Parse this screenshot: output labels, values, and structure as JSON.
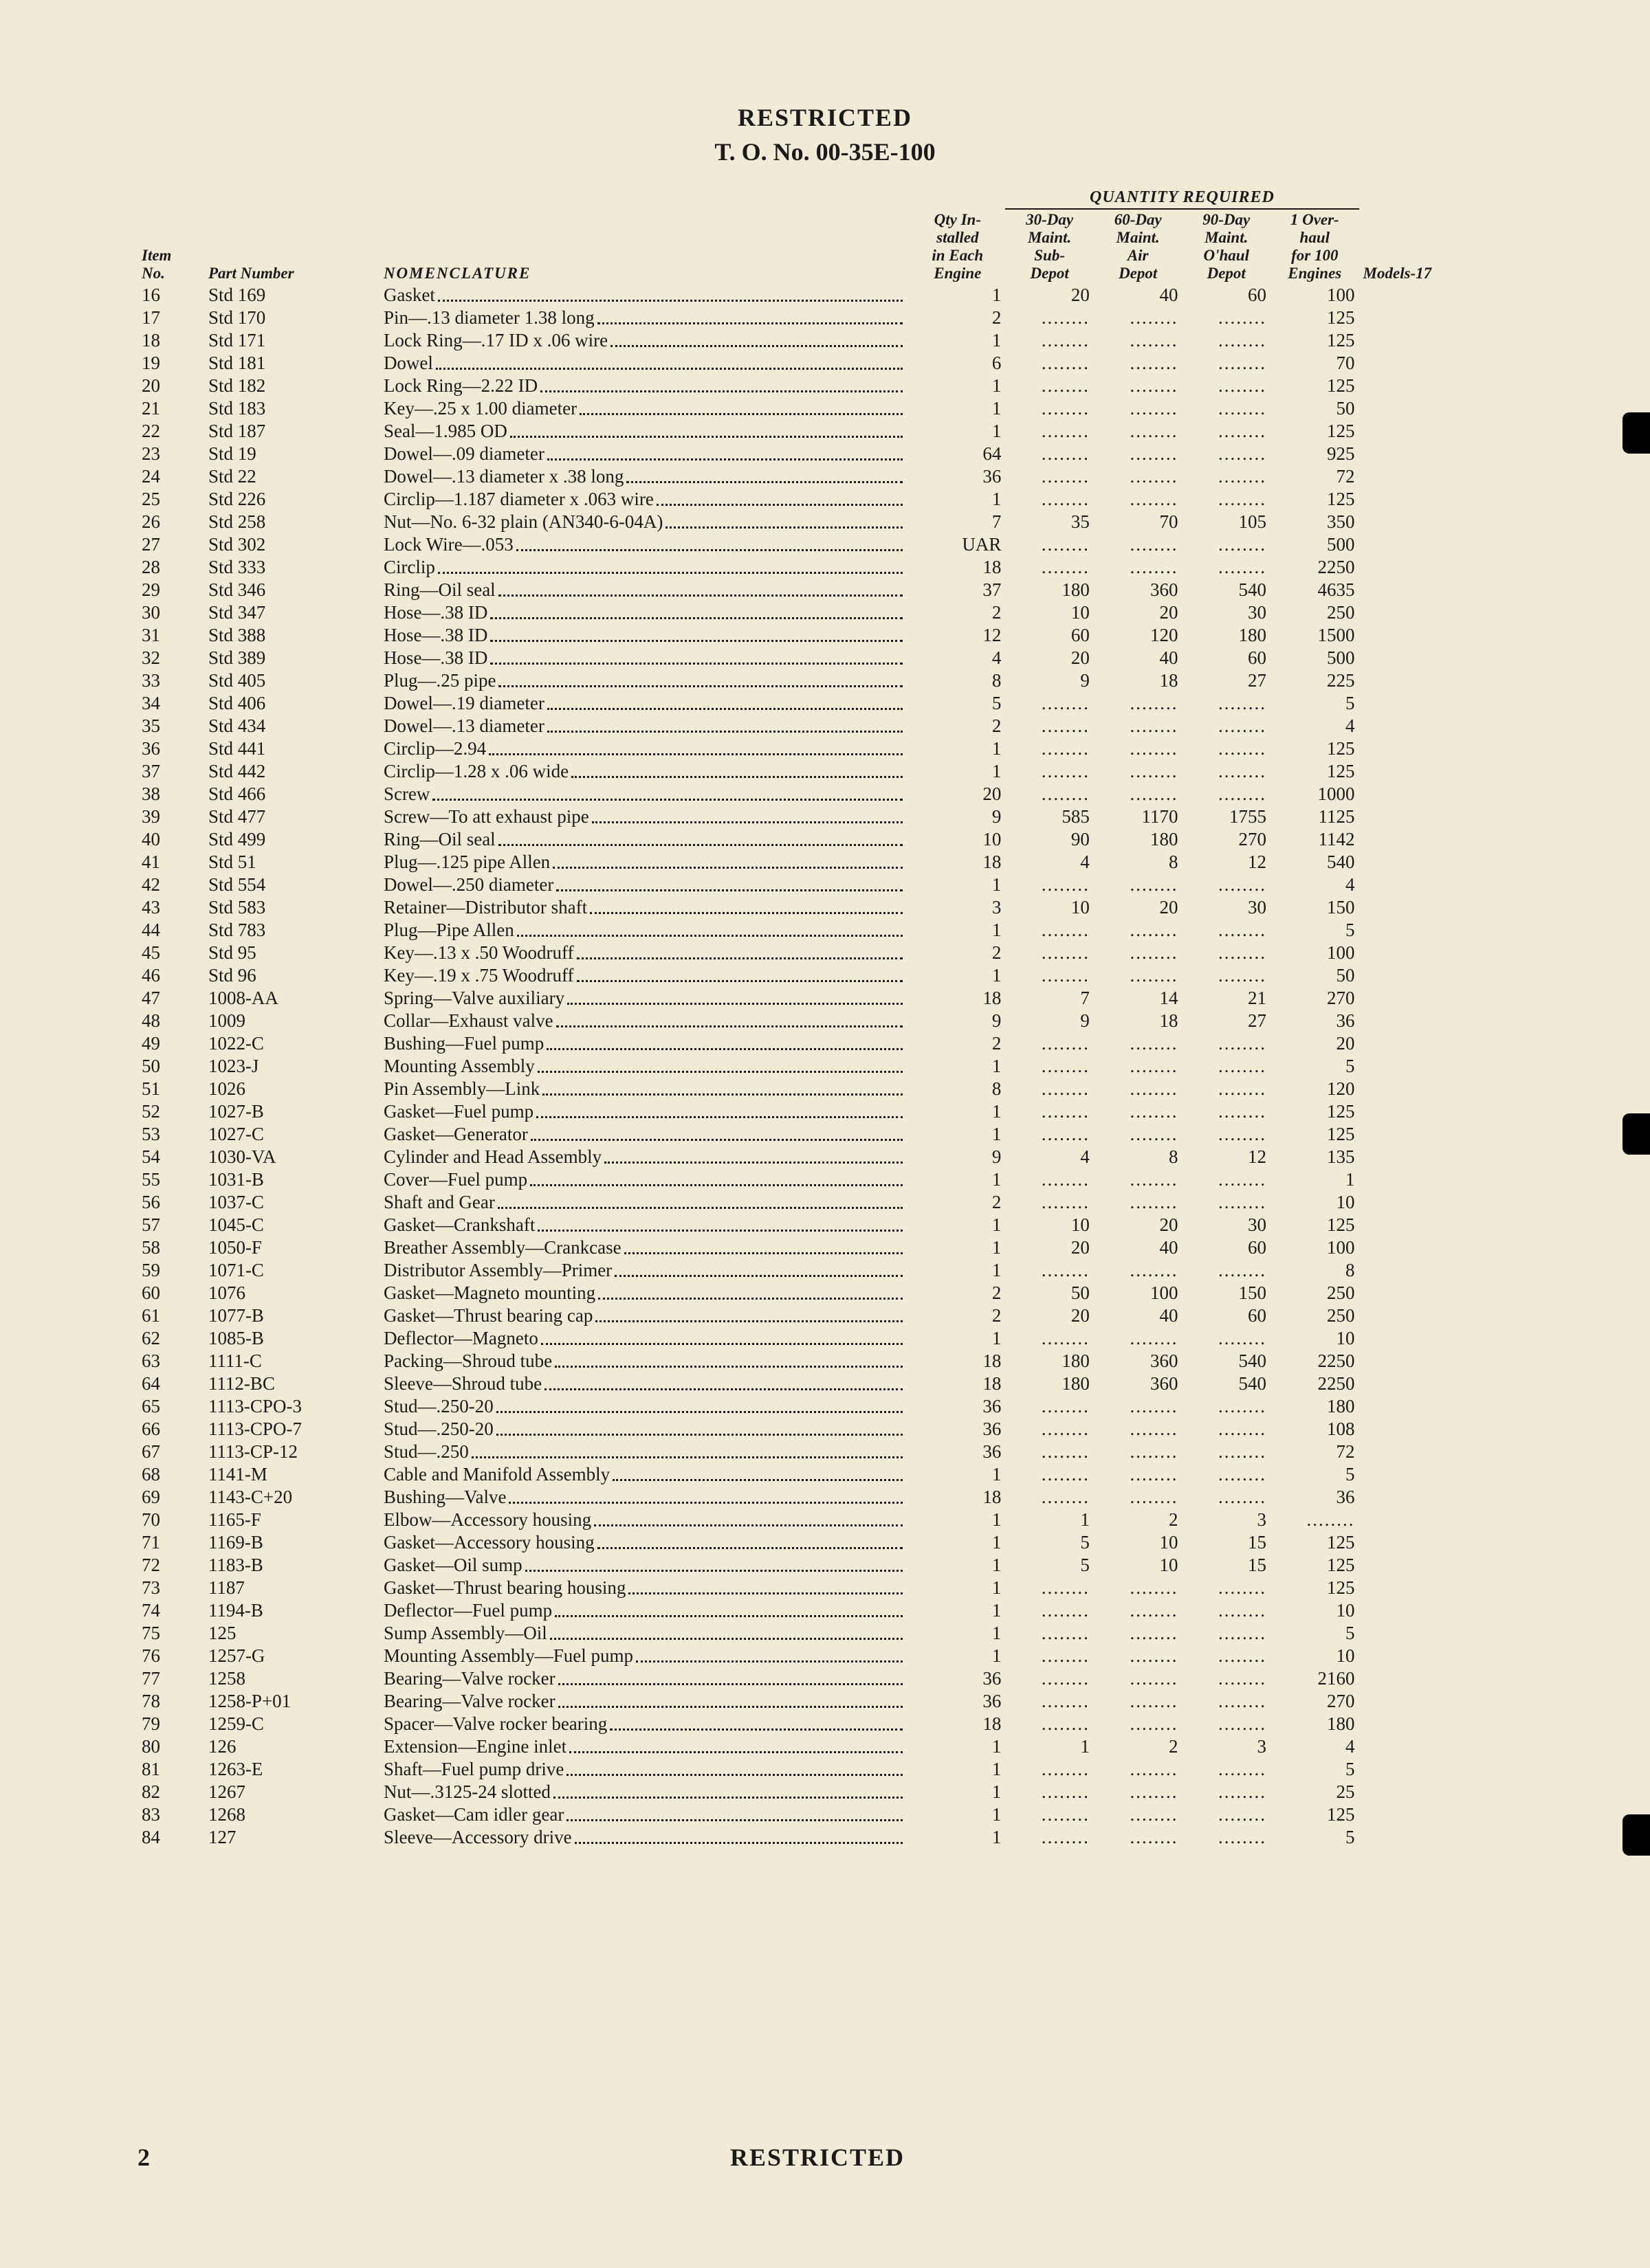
{
  "header": {
    "restricted": "RESTRICTED",
    "to_number": "T. O. No. 00-35E-100"
  },
  "footer": {
    "page_number": "2",
    "restricted": "RESTRICTED"
  },
  "table": {
    "colors": {
      "page_bg": "#f0ead6",
      "text": "#1a1a1a",
      "rule": "#1a1a1a"
    },
    "typography": {
      "body_fontsize_pt": 9,
      "header_fontsize_pt": 12,
      "font_family": "Times"
    },
    "headers": {
      "item": "Item\nNo.",
      "part": "Part Number",
      "nomenclature": "NOMENCLATURE",
      "qty_installed": "Qty In-\nstalled\nin Each\nEngine",
      "quantity_required": "QUANTITY REQUIRED",
      "q30": "30-Day\nMaint.\nSub-\nDepot",
      "q60": "60-Day\nMaint.\nAir\nDepot",
      "q90": "90-Day\nMaint.\nO'haul\nDepot",
      "qoh": "1 Over-\nhaul\nfor 100\nEngines",
      "models": "Models-17"
    },
    "dots_symbol": "........",
    "rows": [
      {
        "item": "16",
        "part": "Std 169",
        "nom": "Gasket",
        "qty": "1",
        "q30": "20",
        "q60": "40",
        "q90": "60",
        "qoh": "100"
      },
      {
        "item": "17",
        "part": "Std 170",
        "nom": "Pin—.13 diameter 1.38 long",
        "qty": "2",
        "q30": "",
        "q60": "",
        "q90": "",
        "qoh": "125"
      },
      {
        "item": "18",
        "part": "Std 171",
        "nom": "Lock Ring—.17 ID x .06 wire",
        "qty": "1",
        "q30": "",
        "q60": "",
        "q90": "",
        "qoh": "125"
      },
      {
        "item": "19",
        "part": "Std 181",
        "nom": "Dowel",
        "qty": "6",
        "q30": "",
        "q60": "",
        "q90": "",
        "qoh": "70"
      },
      {
        "item": "20",
        "part": "Std 182",
        "nom": "Lock Ring—2.22 ID",
        "qty": "1",
        "q30": "",
        "q60": "",
        "q90": "",
        "qoh": "125"
      },
      {
        "item": "21",
        "part": "Std 183",
        "nom": "Key—.25 x 1.00 diameter",
        "qty": "1",
        "q30": "",
        "q60": "",
        "q90": "",
        "qoh": "50"
      },
      {
        "item": "22",
        "part": "Std 187",
        "nom": "Seal—1.985 OD",
        "qty": "1",
        "q30": "",
        "q60": "",
        "q90": "",
        "qoh": "125"
      },
      {
        "item": "23",
        "part": "Std 19",
        "nom": "Dowel—.09 diameter",
        "qty": "64",
        "q30": "",
        "q60": "",
        "q90": "",
        "qoh": "925"
      },
      {
        "item": "24",
        "part": "Std 22",
        "nom": "Dowel—.13 diameter x .38 long",
        "qty": "36",
        "q30": "",
        "q60": "",
        "q90": "",
        "qoh": "72"
      },
      {
        "item": "25",
        "part": "Std 226",
        "nom": "Circlip—1.187 diameter x .063 wire",
        "qty": "1",
        "q30": "",
        "q60": "",
        "q90": "",
        "qoh": "125"
      },
      {
        "item": "26",
        "part": "Std 258",
        "nom": "Nut—No. 6-32 plain (AN340-6-04A)",
        "qty": "7",
        "q30": "35",
        "q60": "70",
        "q90": "105",
        "qoh": "350"
      },
      {
        "item": "27",
        "part": "Std 302",
        "nom": "Lock Wire—.053",
        "qty": "UAR",
        "q30": "",
        "q60": "",
        "q90": "",
        "qoh": "500"
      },
      {
        "item": "28",
        "part": "Std 333",
        "nom": "Circlip",
        "qty": "18",
        "q30": "",
        "q60": "",
        "q90": "",
        "qoh": "2250"
      },
      {
        "item": "29",
        "part": "Std 346",
        "nom": "Ring—Oil seal",
        "qty": "37",
        "q30": "180",
        "q60": "360",
        "q90": "540",
        "qoh": "4635"
      },
      {
        "item": "30",
        "part": "Std 347",
        "nom": "Hose—.38 ID",
        "qty": "2",
        "q30": "10",
        "q60": "20",
        "q90": "30",
        "qoh": "250"
      },
      {
        "item": "31",
        "part": "Std 388",
        "nom": "Hose—.38 ID",
        "qty": "12",
        "q30": "60",
        "q60": "120",
        "q90": "180",
        "qoh": "1500"
      },
      {
        "item": "32",
        "part": "Std 389",
        "nom": "Hose—.38 ID",
        "qty": "4",
        "q30": "20",
        "q60": "40",
        "q90": "60",
        "qoh": "500"
      },
      {
        "item": "33",
        "part": "Std 405",
        "nom": "Plug—.25 pipe",
        "qty": "8",
        "q30": "9",
        "q60": "18",
        "q90": "27",
        "qoh": "225"
      },
      {
        "item": "34",
        "part": "Std 406",
        "nom": "Dowel—.19 diameter",
        "qty": "5",
        "q30": "",
        "q60": "",
        "q90": "",
        "qoh": "5"
      },
      {
        "item": "35",
        "part": "Std 434",
        "nom": "Dowel—.13 diameter",
        "qty": "2",
        "q30": "",
        "q60": "",
        "q90": "",
        "qoh": "4"
      },
      {
        "item": "36",
        "part": "Std 441",
        "nom": "Circlip—2.94",
        "qty": "1",
        "q30": "",
        "q60": "",
        "q90": "",
        "qoh": "125"
      },
      {
        "item": "37",
        "part": "Std 442",
        "nom": "Circlip—1.28 x .06 wide",
        "qty": "1",
        "q30": "",
        "q60": "",
        "q90": "",
        "qoh": "125"
      },
      {
        "item": "38",
        "part": "Std 466",
        "nom": "Screw",
        "qty": "20",
        "q30": "",
        "q60": "",
        "q90": "",
        "qoh": "1000"
      },
      {
        "item": "39",
        "part": "Std 477",
        "nom": "Screw—To att exhaust pipe",
        "qty": "9",
        "q30": "585",
        "q60": "1170",
        "q90": "1755",
        "qoh": "1125"
      },
      {
        "item": "40",
        "part": "Std 499",
        "nom": "Ring—Oil seal",
        "qty": "10",
        "q30": "90",
        "q60": "180",
        "q90": "270",
        "qoh": "1142"
      },
      {
        "item": "41",
        "part": "Std 51",
        "nom": "Plug—.125 pipe Allen",
        "qty": "18",
        "q30": "4",
        "q60": "8",
        "q90": "12",
        "qoh": "540"
      },
      {
        "item": "42",
        "part": "Std 554",
        "nom": "Dowel—.250 diameter",
        "qty": "1",
        "q30": "",
        "q60": "",
        "q90": "",
        "qoh": "4"
      },
      {
        "item": "43",
        "part": "Std 583",
        "nom": "Retainer—Distributor shaft",
        "qty": "3",
        "q30": "10",
        "q60": "20",
        "q90": "30",
        "qoh": "150"
      },
      {
        "item": "44",
        "part": "Std 783",
        "nom": "Plug—Pipe Allen",
        "qty": "1",
        "q30": "",
        "q60": "",
        "q90": "",
        "qoh": "5"
      },
      {
        "item": "45",
        "part": "Std 95",
        "nom": "Key—.13 x .50 Woodruff",
        "qty": "2",
        "q30": "",
        "q60": "",
        "q90": "",
        "qoh": "100"
      },
      {
        "item": "46",
        "part": "Std 96",
        "nom": "Key—.19 x .75 Woodruff",
        "qty": "1",
        "q30": "",
        "q60": "",
        "q90": "",
        "qoh": "50"
      },
      {
        "item": "47",
        "part": "1008-AA",
        "nom": "Spring—Valve auxiliary",
        "qty": "18",
        "q30": "7",
        "q60": "14",
        "q90": "21",
        "qoh": "270"
      },
      {
        "item": "48",
        "part": "1009",
        "nom": "Collar—Exhaust valve",
        "qty": "9",
        "q30": "9",
        "q60": "18",
        "q90": "27",
        "qoh": "36"
      },
      {
        "item": "49",
        "part": "1022-C",
        "nom": "Bushing—Fuel pump",
        "qty": "2",
        "q30": "",
        "q60": "",
        "q90": "",
        "qoh": "20"
      },
      {
        "item": "50",
        "part": "1023-J",
        "nom": "Mounting Assembly",
        "qty": "1",
        "q30": "",
        "q60": "",
        "q90": "",
        "qoh": "5"
      },
      {
        "item": "51",
        "part": "1026",
        "nom": "Pin Assembly—Link",
        "qty": "8",
        "q30": "",
        "q60": "",
        "q90": "",
        "qoh": "120"
      },
      {
        "item": "52",
        "part": "1027-B",
        "nom": "Gasket—Fuel pump",
        "qty": "1",
        "q30": "",
        "q60": "",
        "q90": "",
        "qoh": "125"
      },
      {
        "item": "53",
        "part": "1027-C",
        "nom": "Gasket—Generator",
        "qty": "1",
        "q30": "",
        "q60": "",
        "q90": "",
        "qoh": "125"
      },
      {
        "item": "54",
        "part": "1030-VA",
        "nom": "Cylinder and Head Assembly",
        "qty": "9",
        "q30": "4",
        "q60": "8",
        "q90": "12",
        "qoh": "135"
      },
      {
        "item": "55",
        "part": "1031-B",
        "nom": "Cover—Fuel pump",
        "qty": "1",
        "q30": "",
        "q60": "",
        "q90": "",
        "qoh": "1"
      },
      {
        "item": "56",
        "part": "1037-C",
        "nom": "Shaft and Gear",
        "qty": "2",
        "q30": "",
        "q60": "",
        "q90": "",
        "qoh": "10"
      },
      {
        "item": "57",
        "part": "1045-C",
        "nom": "Gasket—Crankshaft",
        "qty": "1",
        "q30": "10",
        "q60": "20",
        "q90": "30",
        "qoh": "125"
      },
      {
        "item": "58",
        "part": "1050-F",
        "nom": "Breather Assembly—Crankcase",
        "qty": "1",
        "q30": "20",
        "q60": "40",
        "q90": "60",
        "qoh": "100"
      },
      {
        "item": "59",
        "part": "1071-C",
        "nom": "Distributor Assembly—Primer",
        "qty": "1",
        "q30": "",
        "q60": "",
        "q90": "",
        "qoh": "8"
      },
      {
        "item": "60",
        "part": "1076",
        "nom": "Gasket—Magneto mounting",
        "qty": "2",
        "q30": "50",
        "q60": "100",
        "q90": "150",
        "qoh": "250"
      },
      {
        "item": "61",
        "part": "1077-B",
        "nom": "Gasket—Thrust bearing cap",
        "qty": "2",
        "q30": "20",
        "q60": "40",
        "q90": "60",
        "qoh": "250"
      },
      {
        "item": "62",
        "part": "1085-B",
        "nom": "Deflector—Magneto",
        "qty": "1",
        "q30": "",
        "q60": "",
        "q90": "",
        "qoh": "10"
      },
      {
        "item": "63",
        "part": "1111-C",
        "nom": "Packing—Shroud tube",
        "qty": "18",
        "q30": "180",
        "q60": "360",
        "q90": "540",
        "qoh": "2250"
      },
      {
        "item": "64",
        "part": "1112-BC",
        "nom": "Sleeve—Shroud tube",
        "qty": "18",
        "q30": "180",
        "q60": "360",
        "q90": "540",
        "qoh": "2250"
      },
      {
        "item": "65",
        "part": "1113-CPO-3",
        "nom": "Stud—.250-20",
        "qty": "36",
        "q30": "",
        "q60": "",
        "q90": "",
        "qoh": "180"
      },
      {
        "item": "66",
        "part": "1113-CPO-7",
        "nom": "Stud—.250-20",
        "qty": "36",
        "q30": "",
        "q60": "",
        "q90": "",
        "qoh": "108"
      },
      {
        "item": "67",
        "part": "1113-CP-12",
        "nom": "Stud—.250",
        "qty": "36",
        "q30": "",
        "q60": "",
        "q90": "",
        "qoh": "72"
      },
      {
        "item": "68",
        "part": "1141-M",
        "nom": "Cable and Manifold Assembly",
        "qty": "1",
        "q30": "",
        "q60": "",
        "q90": "",
        "qoh": "5"
      },
      {
        "item": "69",
        "part": "1143-C+20",
        "nom": "Bushing—Valve",
        "qty": "18",
        "q30": "",
        "q60": "",
        "q90": "",
        "qoh": "36"
      },
      {
        "item": "70",
        "part": "1165-F",
        "nom": "Elbow—Accessory housing",
        "qty": "1",
        "q30": "1",
        "q60": "2",
        "q90": "3",
        "qoh": ""
      },
      {
        "item": "71",
        "part": "1169-B",
        "nom": "Gasket—Accessory housing",
        "qty": "1",
        "q30": "5",
        "q60": "10",
        "q90": "15",
        "qoh": "125"
      },
      {
        "item": "72",
        "part": "1183-B",
        "nom": "Gasket—Oil sump",
        "qty": "1",
        "q30": "5",
        "q60": "10",
        "q90": "15",
        "qoh": "125"
      },
      {
        "item": "73",
        "part": "1187",
        "nom": "Gasket—Thrust bearing housing",
        "qty": "1",
        "q30": "",
        "q60": "",
        "q90": "",
        "qoh": "125"
      },
      {
        "item": "74",
        "part": "1194-B",
        "nom": "Deflector—Fuel pump",
        "qty": "1",
        "q30": "",
        "q60": "",
        "q90": "",
        "qoh": "10"
      },
      {
        "item": "75",
        "part": "125",
        "nom": "Sump Assembly—Oil",
        "qty": "1",
        "q30": "",
        "q60": "",
        "q90": "",
        "qoh": "5"
      },
      {
        "item": "76",
        "part": "1257-G",
        "nom": "Mounting Assembly—Fuel pump",
        "qty": "1",
        "q30": "",
        "q60": "",
        "q90": "",
        "qoh": "10"
      },
      {
        "item": "77",
        "part": "1258",
        "nom": "Bearing—Valve rocker",
        "qty": "36",
        "q30": "",
        "q60": "",
        "q90": "",
        "qoh": "2160"
      },
      {
        "item": "78",
        "part": "1258-P+01",
        "nom": "Bearing—Valve rocker",
        "qty": "36",
        "q30": "",
        "q60": "",
        "q90": "",
        "qoh": "270"
      },
      {
        "item": "79",
        "part": "1259-C",
        "nom": "Spacer—Valve rocker bearing",
        "qty": "18",
        "q30": "",
        "q60": "",
        "q90": "",
        "qoh": "180"
      },
      {
        "item": "80",
        "part": "126",
        "nom": "Extension—Engine inlet",
        "qty": "1",
        "q30": "1",
        "q60": "2",
        "q90": "3",
        "qoh": "4"
      },
      {
        "item": "81",
        "part": "1263-E",
        "nom": "Shaft—Fuel pump drive",
        "qty": "1",
        "q30": "",
        "q60": "",
        "q90": "",
        "qoh": "5"
      },
      {
        "item": "82",
        "part": "1267",
        "nom": "Nut—.3125-24 slotted",
        "qty": "1",
        "q30": "",
        "q60": "",
        "q90": "",
        "qoh": "25"
      },
      {
        "item": "83",
        "part": "1268",
        "nom": "Gasket—Cam idler gear",
        "qty": "1",
        "q30": "",
        "q60": "",
        "q90": "",
        "qoh": "125"
      },
      {
        "item": "84",
        "part": "127",
        "nom": "Sleeve—Accessory drive",
        "qty": "1",
        "q30": "",
        "q60": "",
        "q90": "",
        "qoh": "5"
      }
    ]
  }
}
